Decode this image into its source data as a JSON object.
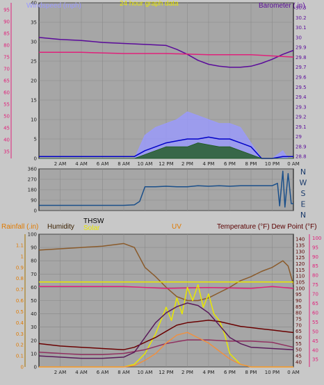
{
  "page_title": "24 hour graph data",
  "chart_data": [
    {
      "type": "line",
      "title": "24 hour graph data",
      "legend": [
        {
          "label": "Windspeed (mph)",
          "color": "#9a9aff"
        },
        {
          "label": "Barometer (.in)",
          "color": "#5a0a9a"
        }
      ],
      "x_ticks": [
        "2 AM",
        "4 AM",
        "6 AM",
        "8 AM",
        "10 AM",
        "12 PM",
        "2 PM",
        "4 PM",
        "6 PM",
        "8 PM",
        "10 PM",
        "0 AM"
      ],
      "x_range": [
        0,
        24
      ],
      "left_axis": {
        "ticks": [
          "40",
          "35",
          "30",
          "25",
          "20",
          "15",
          "10",
          "5",
          "0"
        ],
        "range": [
          0,
          40
        ],
        "color": "#202020"
      },
      "far_left_axis": {
        "ticks": [
          "95",
          "90",
          "85",
          "80",
          "75",
          "70",
          "65",
          "60",
          "55",
          "50",
          "45",
          "40",
          "35"
        ],
        "range": [
          32,
          98
        ],
        "color": "#e0207a"
      },
      "right_axis": {
        "ticks": [
          "30.3",
          "30.2",
          "30.1",
          "30",
          "29.9",
          "29.8",
          "29.7",
          "29.6",
          "29.5",
          "29.4",
          "29.3",
          "29.2",
          "29.1",
          "29",
          "28.9",
          "28.8"
        ],
        "range": [
          28.78,
          30.35
        ],
        "color": "#5a0a9a"
      },
      "grid": true,
      "series": [
        {
          "name": "Barometer (.in)",
          "color": "#5a0a9a",
          "axis": "right",
          "x": [
            0,
            2,
            4,
            6,
            8,
            10,
            12,
            13,
            14,
            15,
            16,
            17,
            18,
            19,
            20,
            21,
            22,
            23,
            24
          ],
          "values": [
            30.0,
            29.98,
            29.97,
            29.95,
            29.94,
            29.93,
            29.92,
            29.88,
            29.83,
            29.77,
            29.73,
            29.71,
            29.7,
            29.7,
            29.71,
            29.74,
            29.78,
            29.83,
            29.87
          ]
        },
        {
          "color": "#e0207a",
          "axis": "far_left",
          "x": [
            0,
            4,
            8,
            12,
            16,
            20,
            24
          ],
          "values": [
            77,
            77,
            76.5,
            76.5,
            76,
            76,
            75
          ]
        },
        {
          "color": "#9a9aff",
          "axis": "left",
          "style": "area",
          "x": [
            0,
            9,
            9.5,
            10,
            11,
            12,
            13,
            14,
            15,
            16,
            17,
            18,
            19,
            20,
            21,
            22,
            23,
            23.5,
            24
          ],
          "values": [
            0,
            0,
            3,
            6,
            8,
            9,
            10,
            12,
            11,
            10,
            9,
            9,
            8,
            4,
            0,
            0,
            2,
            0,
            0
          ]
        },
        {
          "color": "#0000c8",
          "axis": "left",
          "x": [
            0,
            9,
            10,
            11,
            12,
            13,
            14,
            15,
            16,
            17,
            18,
            19,
            20,
            21,
            22,
            23,
            24
          ],
          "values": [
            0.5,
            0.5,
            2,
            3,
            4,
            4.5,
            5,
            5,
            5.5,
            5,
            5,
            4,
            3,
            0,
            0,
            0.5,
            0.5
          ]
        },
        {
          "color": "#1e5a1e",
          "axis": "left",
          "style": "area",
          "x": [
            0,
            9,
            10,
            11,
            12,
            13,
            14,
            15,
            16,
            17,
            18,
            19,
            20,
            21,
            24
          ],
          "values": [
            0,
            0,
            1,
            2,
            3,
            3,
            3,
            4,
            3.5,
            3,
            3,
            2,
            1,
            0,
            0
          ]
        }
      ]
    },
    {
      "type": "line",
      "right_labels": [
        "N",
        "W",
        "S",
        "E",
        "N"
      ],
      "left_axis": {
        "ticks": [
          "360",
          "270",
          "180",
          "90",
          "0"
        ],
        "range": [
          0,
          360
        ]
      },
      "x_range": [
        0,
        24
      ],
      "grid": true,
      "series": [
        {
          "color": "#1a4f8a",
          "x": [
            0,
            8,
            9,
            9.5,
            10,
            11,
            12,
            13,
            14,
            15,
            16,
            17,
            18,
            19,
            20,
            21,
            22,
            22.5,
            22.7,
            23,
            23.2,
            23.5,
            23.8,
            24
          ],
          "values": [
            45,
            45,
            50,
            80,
            205,
            205,
            210,
            205,
            205,
            215,
            210,
            215,
            210,
            215,
            215,
            215,
            215,
            235,
            40,
            340,
            30,
            320,
            60,
            60
          ]
        }
      ]
    },
    {
      "type": "line",
      "legend": [
        {
          "label": "Rainfall (.in)",
          "color": "#e07a00"
        },
        {
          "label": "Humidity",
          "color": "#3a2000"
        },
        {
          "label": "THSW",
          "color": "#000000"
        },
        {
          "label": "Solar",
          "color": "#e8e800"
        },
        {
          "label": "UV",
          "color": "#e07a00"
        },
        {
          "label": "Temperature (°F) Dew Point (°F)",
          "color": "#5a0000"
        }
      ],
      "x_ticks": [
        "2 AM",
        "4 AM",
        "6 AM",
        "8 AM",
        "10 AM",
        "12 PM",
        "2 PM",
        "4 PM",
        "6 PM",
        "8 PM",
        "10 PM",
        "0 AM"
      ],
      "x_range": [
        0,
        24
      ],
      "left_axis": {
        "ticks": [
          "100",
          "90",
          "80",
          "70",
          "60",
          "50",
          "40",
          "30",
          "20",
          "10",
          "0"
        ],
        "range": [
          0,
          100
        ],
        "color": "#202020"
      },
      "rain_axis": {
        "ticks": [
          "1.1",
          "1",
          "0.9",
          "0.8",
          "0.7",
          "0.6",
          "0.5",
          "0.4",
          "0.3",
          "0.2",
          "0.1",
          "0"
        ],
        "range": [
          0,
          1.2
        ],
        "color": "#e07a00"
      },
      "right_axis": {
        "ticks": [
          "140",
          "135",
          "130",
          "125",
          "120",
          "115",
          "110",
          "105",
          "100",
          "95",
          "90",
          "85",
          "80",
          "75",
          "70",
          "65",
          "60",
          "55",
          "50",
          "45",
          "40"
        ],
        "range": [
          36,
          144
        ],
        "color": "#5a0000"
      },
      "far_right_axis": {
        "ticks": [
          "100",
          "95",
          "90",
          "85",
          "80",
          "75",
          "70",
          "65",
          "60",
          "55",
          "50",
          "45",
          "40",
          "35"
        ],
        "range": [
          31,
          102
        ],
        "color": "#e0207a"
      },
      "grid": true,
      "series": [
        {
          "name": "Humidity",
          "color": "#8a5a2a",
          "axis": "left",
          "x": [
            0,
            2,
            4,
            6,
            8,
            9,
            10,
            11,
            12,
            13,
            14,
            15,
            16,
            17,
            18,
            19,
            20,
            21,
            22,
            23,
            23.5,
            24
          ],
          "values": [
            88,
            89,
            90,
            91,
            93,
            90,
            75,
            68,
            60,
            53,
            50,
            50,
            52,
            56,
            60,
            65,
            68,
            72,
            75,
            80,
            76,
            62
          ]
        },
        {
          "color": "#e0207a",
          "axis": "far_right",
          "x": [
            0,
            4,
            8,
            12,
            16,
            20,
            22,
            24
          ],
          "values": [
            74,
            74,
            74,
            73,
            73.5,
            73,
            74,
            73
          ]
        },
        {
          "name": "Solar",
          "color": "#e8e800",
          "axis": "left",
          "x": [
            0,
            8,
            9,
            10,
            11,
            12,
            12.5,
            13,
            13.5,
            14,
            14.5,
            15,
            15.5,
            16,
            16.5,
            17,
            17.5,
            18,
            19,
            20,
            24
          ],
          "values": [
            0,
            0,
            2,
            10,
            25,
            45,
            35,
            52,
            40,
            60,
            50,
            62,
            45,
            55,
            40,
            35,
            25,
            10,
            2,
            0,
            0
          ]
        },
        {
          "color": "#e8e800",
          "axis": "left",
          "x": [
            0,
            24
          ],
          "values": [
            64,
            64
          ]
        },
        {
          "name": "Temperature (°F) Dew Point (°F)",
          "color": "#6a0000",
          "axis": "right",
          "x": [
            0,
            2,
            4,
            6,
            8,
            9,
            10,
            11,
            12,
            13,
            14,
            15,
            16,
            17,
            18,
            19,
            20,
            21,
            22,
            23,
            24
          ],
          "values": [
            55,
            53,
            52,
            51,
            50,
            52,
            56,
            60,
            65,
            70,
            72,
            73,
            74,
            73,
            71,
            69,
            68,
            67,
            66,
            65,
            64
          ]
        },
        {
          "color": "#903060",
          "axis": "right",
          "x": [
            0,
            2,
            4,
            6,
            8,
            10,
            12,
            14,
            16,
            18,
            20,
            22,
            24
          ],
          "values": [
            48,
            47,
            46,
            46,
            47,
            50,
            55,
            58,
            58,
            57,
            57,
            56,
            52
          ]
        },
        {
          "name": "THSW",
          "color": "#5a1a5a",
          "axis": "right",
          "x": [
            0,
            2,
            4,
            6,
            8,
            9,
            10,
            11,
            12,
            13,
            14,
            15,
            16,
            17,
            18,
            19,
            20,
            24
          ],
          "values": [
            45,
            44,
            43,
            43,
            44,
            48,
            60,
            72,
            80,
            85,
            88,
            86,
            80,
            70,
            60,
            55,
            52,
            50
          ]
        },
        {
          "name": "UV",
          "color": "#f09040",
          "axis": "left",
          "x": [
            0,
            8,
            9,
            10,
            11,
            12,
            13,
            14,
            15,
            16,
            17,
            18,
            19,
            20,
            24
          ],
          "values": [
            0,
            0,
            1,
            5,
            10,
            18,
            24,
            26,
            22,
            18,
            12,
            6,
            2,
            0,
            0
          ]
        }
      ]
    }
  ]
}
